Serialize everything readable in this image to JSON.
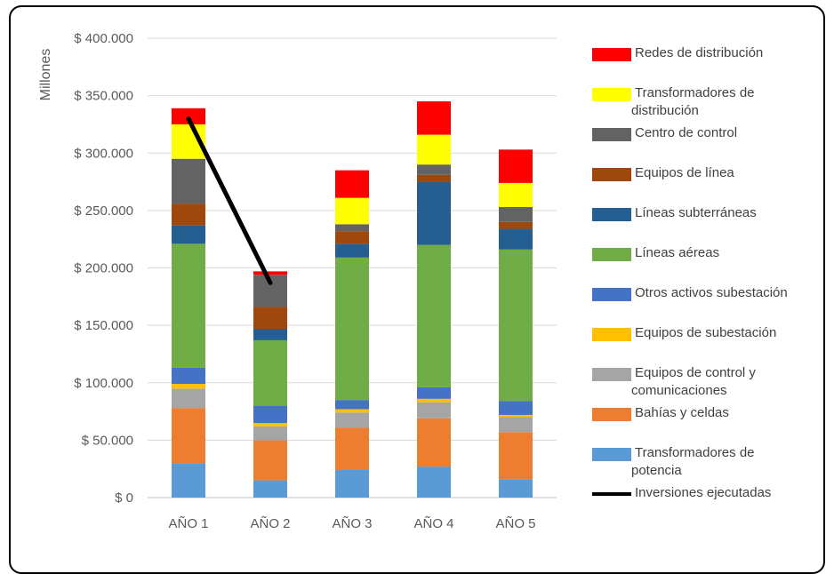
{
  "chart_data": {
    "type": "bar",
    "stacked": true,
    "title": "",
    "xlabel": "",
    "ylabel": "Millones",
    "ylim": [
      0,
      400000
    ],
    "y_ticks": [
      "$ 0",
      "$ 50.000",
      "$ 100.000",
      "$ 150.000",
      "$ 200.000",
      "$ 250.000",
      "$ 300.000",
      "$ 350.000",
      "$ 400.000"
    ],
    "categories": [
      "AÑO 1",
      "AÑO 2",
      "AÑO 3",
      "AÑO 4",
      "AÑO 5"
    ],
    "grid": true,
    "legend_position": "right",
    "series": [
      {
        "name": "Transformadores de potencia",
        "color": "#5B9BD5",
        "values": [
          30000,
          15000,
          24000,
          27000,
          16000
        ]
      },
      {
        "name": "Bahías y celdas",
        "color": "#ED7D31",
        "values": [
          48000,
          35000,
          37000,
          42000,
          41000
        ]
      },
      {
        "name": "Equipos de control y comunicaciones",
        "color": "#A5A5A5",
        "values": [
          17000,
          12000,
          13000,
          14000,
          13000
        ]
      },
      {
        "name": "Equipos de subestación",
        "color": "#FFC000",
        "values": [
          4000,
          3000,
          3000,
          3000,
          2000
        ]
      },
      {
        "name": "Otros activos subestación",
        "color": "#4472C4",
        "values": [
          14000,
          15000,
          8000,
          10000,
          12000
        ]
      },
      {
        "name": "Líneas aéreas",
        "color": "#70AD47",
        "values": [
          108000,
          57000,
          124000,
          124000,
          132000
        ]
      },
      {
        "name": "Líneas subterráneas",
        "color": "#255E91",
        "values": [
          16000,
          10000,
          12000,
          55000,
          18000
        ]
      },
      {
        "name": "Equipos de línea",
        "color": "#9E480E",
        "values": [
          19000,
          19000,
          11000,
          6000,
          6000
        ]
      },
      {
        "name": "Centro de control",
        "color": "#636363",
        "values": [
          39000,
          28000,
          6000,
          9000,
          13000
        ]
      },
      {
        "name": "Transformadores de distribución",
        "color": "#FFFF00",
        "values": [
          30000,
          0,
          23000,
          26000,
          21000
        ]
      },
      {
        "name": "Redes de distribución",
        "color": "#FF0000",
        "values": [
          14000,
          3000,
          24000,
          29000,
          29000
        ]
      }
    ],
    "line_series": {
      "name": "Inversiones ejecutadas",
      "color": "#000000",
      "values": [
        330000,
        187000
      ]
    },
    "legend_items": [
      {
        "lines": [
          "Redes de distribución"
        ],
        "color": "#FF0000",
        "kind": "rect"
      },
      {
        "lines": [
          "Transformadores de",
          "distribución"
        ],
        "color": "#FFFF00",
        "kind": "rect"
      },
      {
        "lines": [
          "Centro de control"
        ],
        "color": "#636363",
        "kind": "rect"
      },
      {
        "lines": [
          "Equipos de línea"
        ],
        "color": "#9E480E",
        "kind": "rect"
      },
      {
        "lines": [
          "Líneas subterráneas"
        ],
        "color": "#255E91",
        "kind": "rect"
      },
      {
        "lines": [
          "Líneas aéreas"
        ],
        "color": "#70AD47",
        "kind": "rect"
      },
      {
        "lines": [
          "Otros activos subestación"
        ],
        "color": "#4472C4",
        "kind": "rect"
      },
      {
        "lines": [
          "Equipos de subestación"
        ],
        "color": "#FFC000",
        "kind": "rect"
      },
      {
        "lines": [
          "Equipos de control y",
          "comunicaciones"
        ],
        "color": "#A5A5A5",
        "kind": "rect"
      },
      {
        "lines": [
          "Bahías y celdas"
        ],
        "color": "#ED7D31",
        "kind": "rect"
      },
      {
        "lines": [
          "Transformadores de",
          "potencia"
        ],
        "color": "#5B9BD5",
        "kind": "rect"
      },
      {
        "lines": [
          "Inversiones ejecutadas"
        ],
        "color": "#000000",
        "kind": "line"
      }
    ]
  }
}
